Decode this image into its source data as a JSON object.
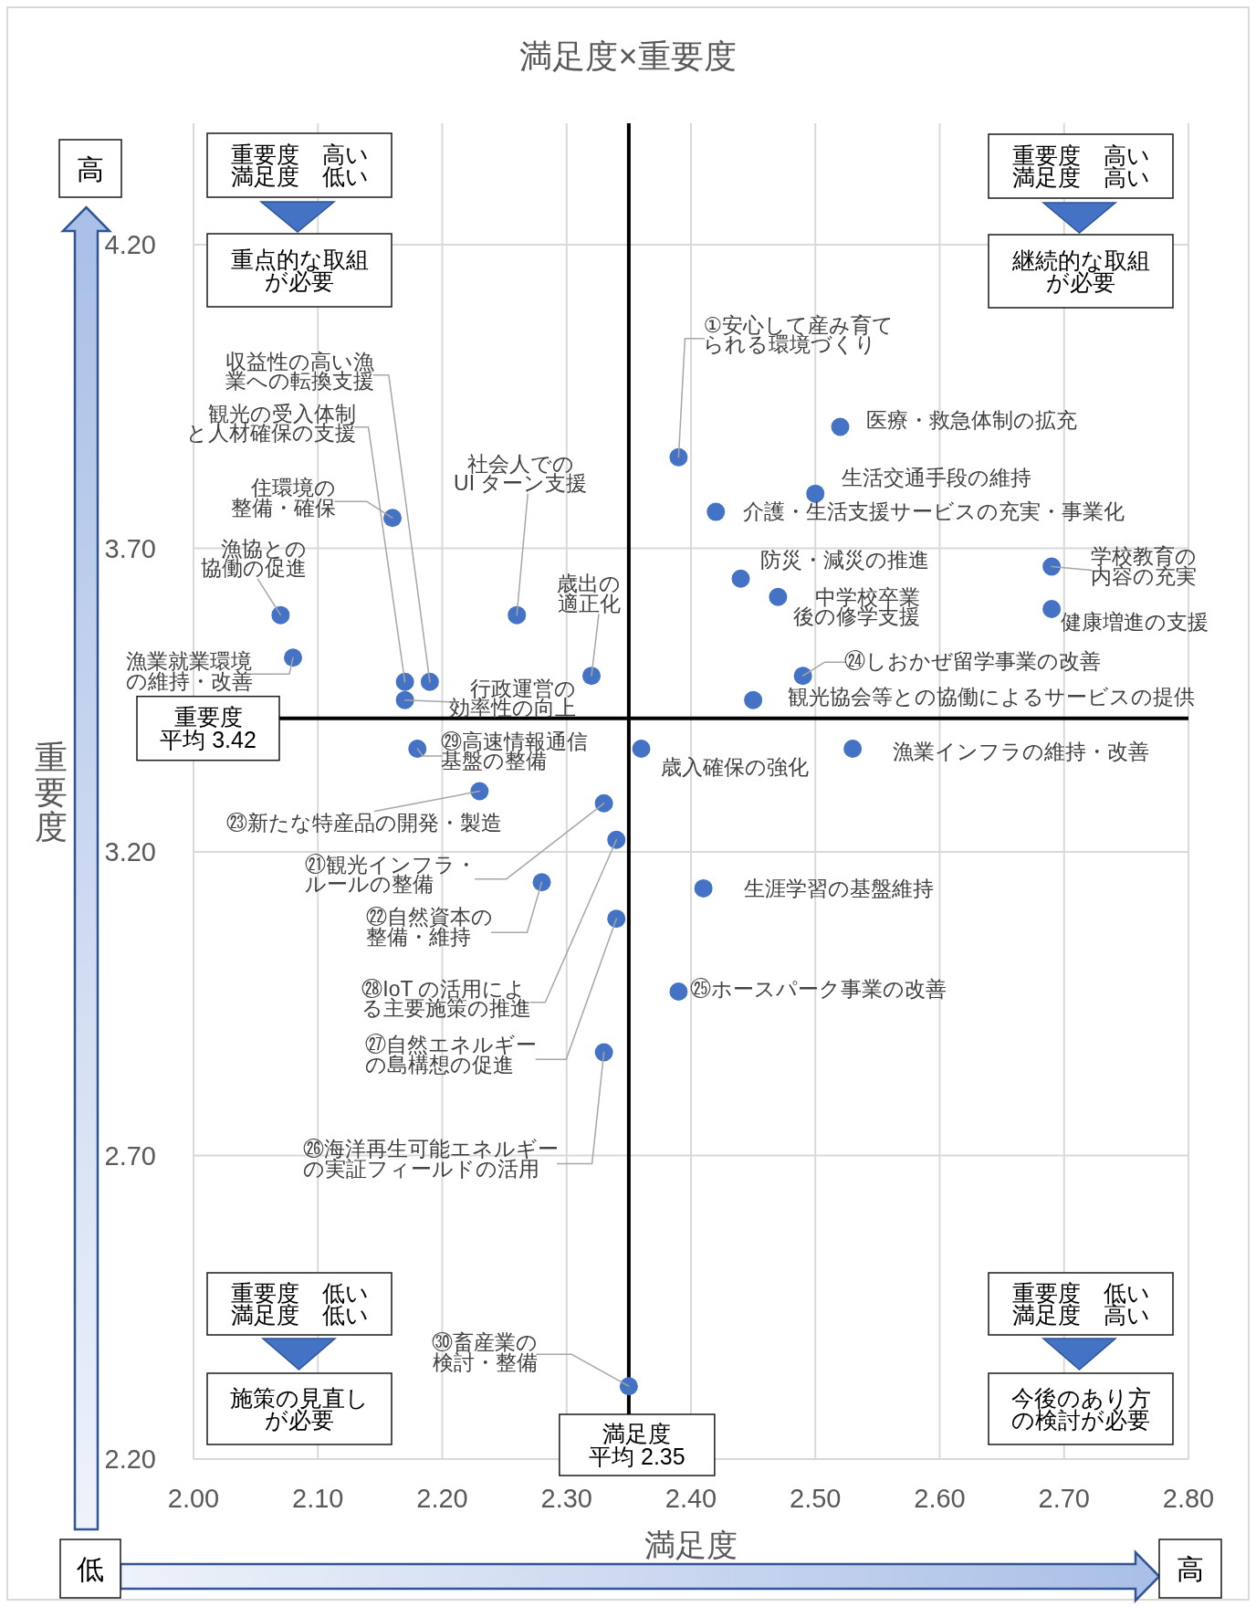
{
  "chart_data": {
    "type": "scatter",
    "title": "満足度×重要度",
    "xlabel": "満足度",
    "ylabel": "重要度",
    "xlim": [
      2.0,
      2.8
    ],
    "ylim": [
      2.2,
      4.4
    ],
    "xticks": [
      {
        "value": 2.0,
        "label": "2.00"
      },
      {
        "value": 2.1,
        "label": "2.10"
      },
      {
        "value": 2.2,
        "label": "2.20"
      },
      {
        "value": 2.3,
        "label": "2.30"
      },
      {
        "value": 2.4,
        "label": "2.40"
      },
      {
        "value": 2.5,
        "label": "2.50"
      },
      {
        "value": 2.6,
        "label": "2.60"
      },
      {
        "value": 2.7,
        "label": "2.70"
      },
      {
        "value": 2.8,
        "label": "2.80"
      }
    ],
    "yticks": [
      {
        "value": 2.2,
        "label": "2.20"
      },
      {
        "value": 2.7,
        "label": "2.70"
      },
      {
        "value": 3.2,
        "label": "3.20"
      },
      {
        "value": 3.7,
        "label": "3.70"
      },
      {
        "value": 4.2,
        "label": "4.20"
      }
    ],
    "grid": true,
    "marker": "circle",
    "series": [
      {
        "color": "#4472c4",
        "x": [
          2.16,
          2.07,
          2.08,
          2.17,
          2.19,
          2.17,
          2.26,
          2.32,
          2.39,
          2.52,
          2.5,
          2.42,
          2.44,
          2.47,
          2.69,
          2.69,
          2.49,
          2.45,
          2.18,
          2.23,
          2.33,
          2.28,
          2.34,
          2.34,
          2.33,
          2.36,
          2.53,
          2.41,
          2.39,
          2.35
        ],
        "values": [
          3.75,
          3.59,
          3.52,
          3.48,
          3.48,
          3.45,
          3.59,
          3.49,
          3.85,
          3.9,
          3.79,
          3.76,
          3.65,
          3.62,
          3.67,
          3.6,
          3.49,
          3.45,
          3.37,
          3.3,
          3.28,
          3.15,
          3.22,
          3.09,
          2.87,
          3.37,
          3.37,
          3.14,
          2.97,
          2.32
        ]
      }
    ],
    "ref_lines": [
      {
        "axis": "x",
        "value": 2.35,
        "label": "満足度平均 2.35",
        "color": "#000000"
      },
      {
        "axis": "y",
        "value": 3.42,
        "label": "重要度平均 3.42",
        "color": "#000000"
      }
    ],
    "annotations": [
      {
        "text": "住環境の整備・確保",
        "x": 2.16,
        "y": 3.75
      },
      {
        "text": "漁協との協働の促進",
        "x": 2.07,
        "y": 3.59
      },
      {
        "text": "漁業就業環境の維持・改善",
        "x": 2.08,
        "y": 3.52
      },
      {
        "text": "観光の受入体制と人材確保の支援",
        "x": 2.17,
        "y": 3.48
      },
      {
        "text": "収益性の高い漁業への転換支援",
        "x": 2.19,
        "y": 3.48
      },
      {
        "text": "行政運営の効率性の向上",
        "x": 2.17,
        "y": 3.45
      },
      {
        "text": "社会人でのUI ターン支援",
        "x": 2.26,
        "y": 3.59
      },
      {
        "text": "歳出の適正化",
        "x": 2.32,
        "y": 3.49
      },
      {
        "text": "①安心して産み育てられる環境づくり",
        "x": 2.39,
        "y": 3.85
      },
      {
        "text": "医療・救急体制の拡充",
        "x": 2.52,
        "y": 3.9
      },
      {
        "text": "生活交通手段の維持",
        "x": 2.5,
        "y": 3.79
      },
      {
        "text": "介護・生活支援サービスの充実・事業化",
        "x": 2.42,
        "y": 3.76
      },
      {
        "text": "防災・減災の推進",
        "x": 2.44,
        "y": 3.65
      },
      {
        "text": "中学校卒業後の修学支援",
        "x": 2.47,
        "y": 3.62
      },
      {
        "text": "学校教育の内容の充実",
        "x": 2.69,
        "y": 3.67
      },
      {
        "text": "健康増進の支援",
        "x": 2.69,
        "y": 3.6
      },
      {
        "text": "㉔しおかぜ留学事業の改善",
        "x": 2.49,
        "y": 3.49
      },
      {
        "text": "観光協会等との協働によるサービスの提供",
        "x": 2.45,
        "y": 3.45
      },
      {
        "text": "㉙高速情報通信基盤の整備",
        "x": 2.18,
        "y": 3.37
      },
      {
        "text": "㉓新たな特産品の開発・製造",
        "x": 2.23,
        "y": 3.3
      },
      {
        "text": "㉑観光インフラ・ルールの整備",
        "x": 2.33,
        "y": 3.28
      },
      {
        "text": "㉒自然資本の整備・維持",
        "x": 2.28,
        "y": 3.15
      },
      {
        "text": "㉘IoT の活用による主要施策の推進",
        "x": 2.34,
        "y": 3.22
      },
      {
        "text": "㉗自然エネルギーの島構想の促進",
        "x": 2.34,
        "y": 3.09
      },
      {
        "text": "㉖海洋再生可能エネルギーの実証フィールドの活用",
        "x": 2.33,
        "y": 2.87
      },
      {
        "text": "歳入確保の強化",
        "x": 2.36,
        "y": 3.37
      },
      {
        "text": "漁業インフラの維持・改善",
        "x": 2.53,
        "y": 3.37
      },
      {
        "text": "生涯学習の基盤維持",
        "x": 2.41,
        "y": 3.14
      },
      {
        "text": "㉕ホースパーク事業の改善",
        "x": 2.39,
        "y": 2.97
      },
      {
        "text": "㉚畜産業の検討・整備",
        "x": 2.35,
        "y": 2.32
      },
      "重要度　高い満足度　低い",
      "重点的な取組が必要",
      "重要度　高い満足度　高い",
      "継続的な取組が必要",
      "重要度　低い満足度　低い",
      "施策の見直しが必要",
      "重要度　低い満足度　高い",
      "今後のあり方の検討が必要",
      "高",
      "低",
      "高"
    ]
  }
}
